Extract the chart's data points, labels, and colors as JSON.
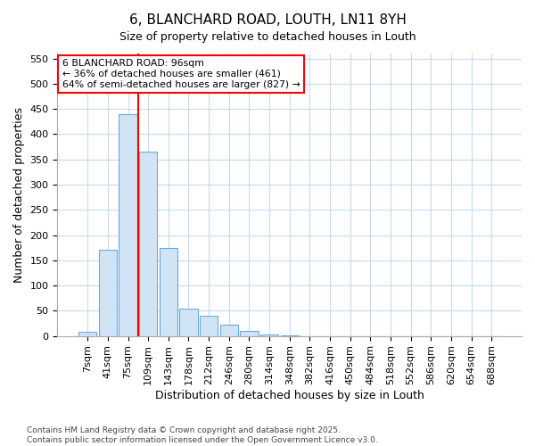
{
  "title": "6, BLANCHARD ROAD, LOUTH, LN11 8YH",
  "subtitle": "Size of property relative to detached houses in Louth",
  "xlabel": "Distribution of detached houses by size in Louth",
  "ylabel": "Number of detached properties",
  "categories": [
    "7sqm",
    "41sqm",
    "75sqm",
    "109sqm",
    "143sqm",
    "178sqm",
    "212sqm",
    "246sqm",
    "280sqm",
    "314sqm",
    "348sqm",
    "382sqm",
    "416sqm",
    "450sqm",
    "484sqm",
    "518sqm",
    "552sqm",
    "586sqm",
    "620sqm",
    "654sqm",
    "688sqm"
  ],
  "values": [
    8,
    170,
    440,
    365,
    175,
    55,
    40,
    22,
    10,
    3,
    1,
    0,
    0,
    0,
    0,
    0,
    0,
    0,
    0,
    0,
    0
  ],
  "bar_color": "#d0e4f5",
  "bar_edgecolor": "#6aabe0",
  "vline_x": 2.5,
  "vline_color": "red",
  "annotation_text": "6 BLANCHARD ROAD: 96sqm\n← 36% of detached houses are smaller (461)\n64% of semi-detached houses are larger (827) →",
  "annotation_box_color": "white",
  "annotation_box_edgecolor": "red",
  "ylim": [
    0,
    560
  ],
  "yticks": [
    0,
    50,
    100,
    150,
    200,
    250,
    300,
    350,
    400,
    450,
    500,
    550
  ],
  "footer": "Contains HM Land Registry data © Crown copyright and database right 2025.\nContains public sector information licensed under the Open Government Licence v3.0.",
  "bg_color": "#ffffff",
  "grid_color": "#c8daf0",
  "title_fontsize": 11,
  "subtitle_fontsize": 9,
  "axis_label_fontsize": 9,
  "tick_fontsize": 8
}
